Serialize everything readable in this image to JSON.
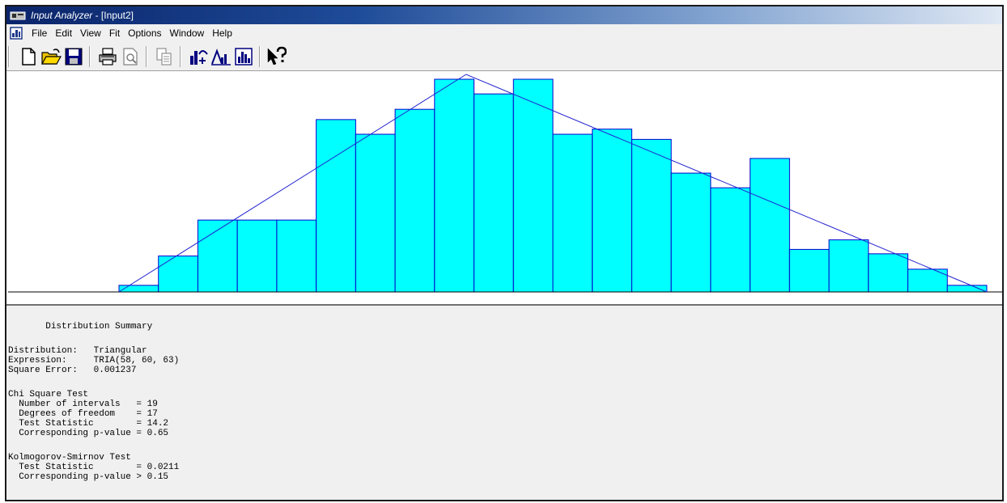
{
  "window": {
    "app_name": "Input Analyzer",
    "doc_name": " - [Input2]"
  },
  "menu": [
    "File",
    "Edit",
    "View",
    "Fit",
    "Options",
    "Window",
    "Help"
  ],
  "toolbar": {
    "buttons": [
      "new-icon",
      "open-icon",
      "save-icon",
      "print-icon",
      "print-preview-icon",
      "copy-icon",
      "fit-all-icon",
      "fit-distribution-icon",
      "histogram-icon",
      "help-pointer-icon"
    ]
  },
  "colors": {
    "bar_fill": "#00ffff",
    "bar_stroke": "#0000cc",
    "curve": "#2020d0"
  },
  "chart_data": {
    "type": "bar",
    "values": [
      0.009,
      0.049,
      0.098,
      0.098,
      0.098,
      0.235,
      0.215,
      0.249,
      0.29,
      0.27,
      0.29,
      0.215,
      0.222,
      0.208,
      0.162,
      0.142,
      0.182,
      0.058,
      0.071,
      0.052,
      0.031,
      0.009
    ],
    "fitted_curve": {
      "distribution": "triangular",
      "min": 58,
      "mode": 60,
      "max": 63
    }
  },
  "summary": {
    "heading": "Distribution Summary",
    "distribution": "Distribution:   Triangular",
    "expression": "Expression:     TRIA(58, 60, 63)",
    "square_error": "Square Error:   0.001237",
    "chi_title": "Chi Square Test",
    "chi_intervals": "  Number of intervals   = 19",
    "chi_dof": "  Degrees of freedom    = 17",
    "chi_stat": "  Test Statistic        = 14.2",
    "chi_p": "  Corresponding p-value = 0.65",
    "ks_title": "Kolmogorov-Smirnov Test",
    "ks_stat": "  Test Statistic        = 0.0211",
    "ks_p": "  Corresponding p-value > 0.15"
  }
}
